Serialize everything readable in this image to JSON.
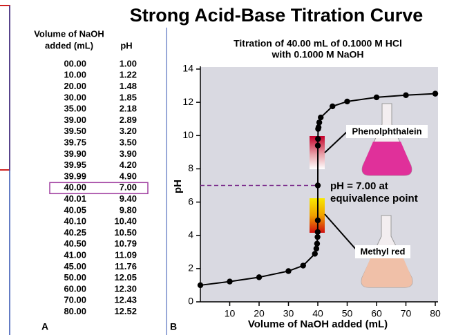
{
  "title": "Strong Acid-Base Titration Curve",
  "panel_labels": [
    "A",
    "B"
  ],
  "table": {
    "header": {
      "volume": [
        "Volume of NaOH",
        "added (mL)"
      ],
      "ph": "pH"
    },
    "rows": [
      [
        "00.00",
        "1.00"
      ],
      [
        "10.00",
        "1.22"
      ],
      [
        "20.00",
        "1.48"
      ],
      [
        "30.00",
        "1.85"
      ],
      [
        "35.00",
        "2.18"
      ],
      [
        "39.00",
        "2.89"
      ],
      [
        "39.50",
        "3.20"
      ],
      [
        "39.75",
        "3.50"
      ],
      [
        "39.90",
        "3.90"
      ],
      [
        "39.95",
        "4.20"
      ],
      [
        "39.99",
        "4.90"
      ],
      [
        "40.00",
        "7.00"
      ],
      [
        "40.01",
        "9.40"
      ],
      [
        "40.05",
        "9.80"
      ],
      [
        "40.10",
        "10.40"
      ],
      [
        "40.25",
        "10.50"
      ],
      [
        "40.50",
        "10.79"
      ],
      [
        "41.00",
        "11.09"
      ],
      [
        "45.00",
        "11.76"
      ],
      [
        "50.00",
        "12.05"
      ],
      [
        "60.00",
        "12.30"
      ],
      [
        "70.00",
        "12.43"
      ],
      [
        "80.00",
        "12.52"
      ]
    ]
  },
  "chart_data": {
    "type": "line",
    "title": [
      "Titration of 40.00 mL of 0.1000 M HCl",
      "with 0.1000 M NaOH"
    ],
    "x_label": "Volume of NaOH added (mL)",
    "y_label": "pH",
    "x": [
      0,
      10,
      20,
      30,
      35,
      39,
      39.5,
      39.75,
      39.9,
      39.95,
      39.99,
      40,
      40.01,
      40.05,
      40.1,
      40.25,
      40.5,
      41,
      45,
      50,
      60,
      70,
      80
    ],
    "values": [
      1.0,
      1.22,
      1.48,
      1.85,
      2.18,
      2.89,
      3.2,
      3.5,
      3.9,
      4.2,
      4.9,
      7.0,
      9.4,
      9.8,
      10.4,
      10.5,
      10.79,
      11.09,
      11.76,
      12.05,
      12.3,
      12.43,
      12.52
    ],
    "color": "#000000",
    "xlim": [
      0,
      80
    ],
    "xticks": [
      10,
      20,
      30,
      40,
      50,
      60,
      70,
      80
    ],
    "ylim": [
      0,
      14
    ],
    "yticks": [
      0,
      2,
      4,
      6,
      8,
      10,
      12,
      14
    ],
    "annotations": {
      "phenolphthalein": "Phenolphthalein",
      "methyl_red": "Methyl red",
      "equivalence": [
        "pH = 7.00 at",
        "equivalence point"
      ]
    }
  }
}
